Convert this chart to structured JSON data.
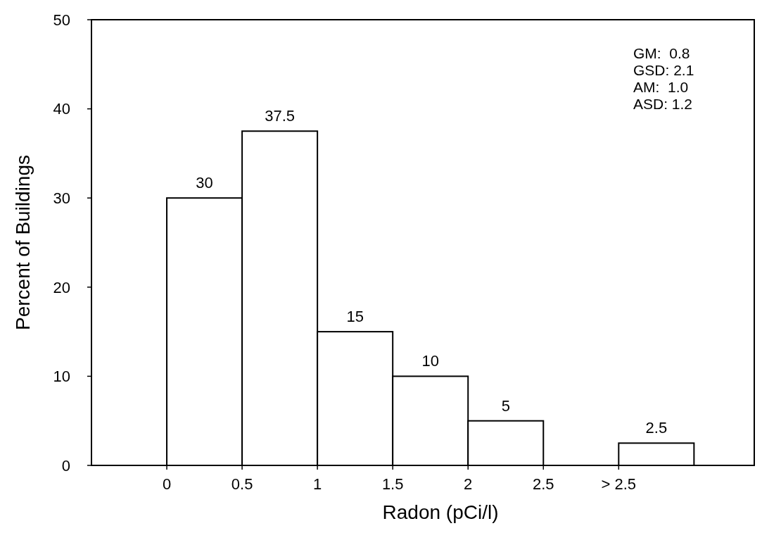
{
  "chart_data": {
    "type": "histogram",
    "xlabel": "Radon (pCi/l)",
    "ylabel": "Percent of Buildings",
    "bins": [
      0,
      0.5,
      1,
      1.5,
      2,
      2.5,
      3,
      3.5
    ],
    "values": [
      30,
      37.5,
      15,
      10,
      5,
      null,
      2.5
    ],
    "color": "#ffffff",
    "xlim": [
      -0.5,
      3.9
    ],
    "xticks": [
      0,
      0.5,
      1,
      1.5,
      2,
      2.5,
      {
        "value": 3,
        "label": "> 2.5"
      }
    ],
    "ylim": [
      0,
      50
    ],
    "yticks": [
      0,
      10,
      20,
      30,
      40,
      50
    ],
    "data_labels": true,
    "grid": false,
    "annotations": [
      "GM:  0.8",
      "GSD: 2.1",
      "AM:  1.0",
      "ASD: 1.2"
    ]
  }
}
